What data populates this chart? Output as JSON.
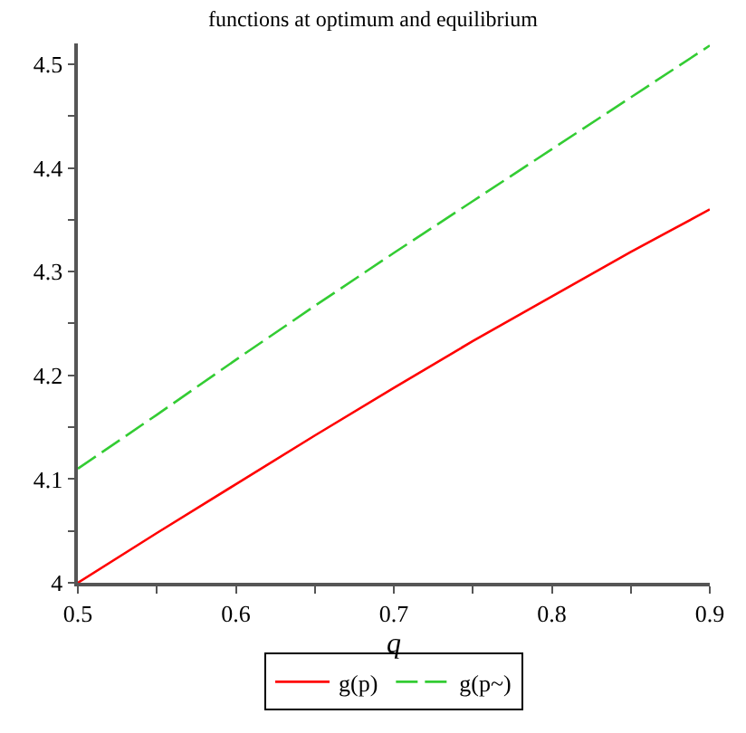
{
  "chart_data": {
    "type": "line",
    "title": "functions at optimum and equilibrium",
    "xlabel": "q",
    "x": [
      0.5,
      0.55,
      0.6,
      0.65,
      0.7,
      0.75,
      0.8,
      0.85,
      0.9
    ],
    "series": [
      {
        "name": "g(p)",
        "color": "#ff0000",
        "line_style": "solid",
        "values": [
          4.0,
          4.048,
          4.095,
          4.142,
          4.188,
          4.233,
          4.276,
          4.319,
          4.36
        ]
      },
      {
        "name": "g(p~)",
        "color": "#33cc33",
        "line_style": "dashed",
        "values": [
          4.11,
          4.162,
          4.215,
          4.267,
          4.318,
          4.368,
          4.418,
          4.468,
          4.518
        ]
      }
    ],
    "xlim": [
      0.5,
      0.9
    ],
    "ylim": [
      4,
      4.52
    ],
    "xticks": [
      0.5,
      {
        "value": 0.55,
        "label": null
      },
      0.6,
      {
        "value": 0.65,
        "label": null
      },
      0.7,
      {
        "value": 0.75,
        "label": null
      },
      0.8,
      {
        "value": 0.85,
        "label": null
      },
      0.9
    ],
    "yticks": [
      "4",
      {
        "value": 4.05,
        "label": null
      },
      4.1,
      {
        "value": 4.15,
        "label": null
      },
      4.2,
      {
        "value": 4.25,
        "label": null
      },
      4.3,
      {
        "value": 4.35,
        "label": null
      },
      4.4,
      {
        "value": 4.45,
        "label": null
      },
      4.5
    ],
    "grid": false,
    "legend": "bottom",
    "marker": "none"
  }
}
